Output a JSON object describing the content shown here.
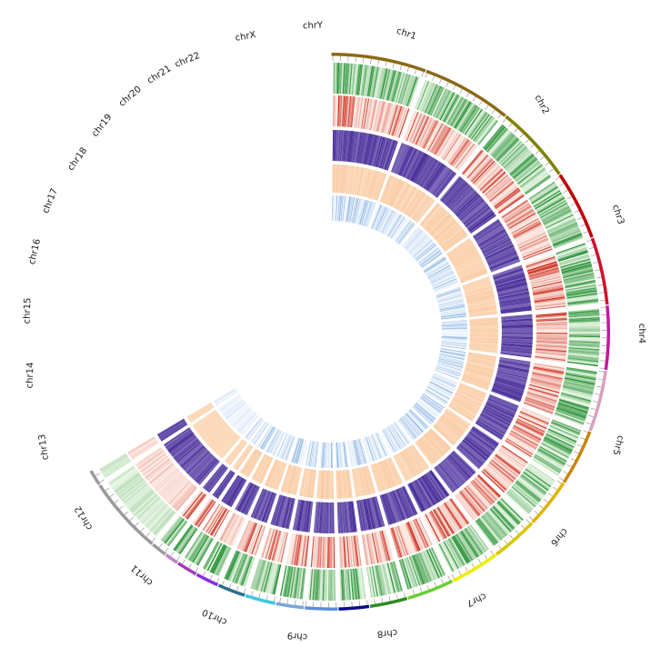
{
  "chart_data": {
    "type": "circos",
    "title": "",
    "chromosomes": [
      {
        "name": "chr1",
        "color": "#8B6914"
      },
      {
        "name": "chr2",
        "color": "#8B6914"
      },
      {
        "name": "chr3",
        "color": "#808000"
      },
      {
        "name": "chr4",
        "color": "#C00000"
      },
      {
        "name": "chr5",
        "color": "#D0102A"
      },
      {
        "name": "chr6",
        "color": "#C21A9A"
      },
      {
        "name": "chr7",
        "color": "#D8A0C0"
      },
      {
        "name": "chr8",
        "color": "#C8860A"
      },
      {
        "name": "chr9",
        "color": "#E4B000"
      },
      {
        "name": "chr10",
        "color": "#D6C800"
      },
      {
        "name": "chr11",
        "color": "#EEEE00"
      },
      {
        "name": "chr12",
        "color": "#6ACD32"
      },
      {
        "name": "chr13",
        "color": "#2E8B22"
      },
      {
        "name": "chr14",
        "color": "#0A0A8C"
      },
      {
        "name": "chr15",
        "color": "#5B8FD6"
      },
      {
        "name": "chr16",
        "color": "#7AA6D8"
      },
      {
        "name": "chr17",
        "color": "#3CC8DC"
      },
      {
        "name": "chr18",
        "color": "#2A6E8C"
      },
      {
        "name": "chr19",
        "color": "#8A2BE2"
      },
      {
        "name": "chr20",
        "color": "#A03CB4"
      },
      {
        "name": "chr21",
        "color": "#C080C8"
      },
      {
        "name": "chr22",
        "color": "#9A9A9A"
      },
      {
        "name": "chrX",
        "color": "#9A9A9A"
      },
      {
        "name": "chrY",
        "color": "#9A9A9A"
      }
    ],
    "tracks": [
      {
        "kind": "heatmap",
        "color_scale": [
          "#E8F6E4",
          "#1E8B2E"
        ]
      },
      {
        "kind": "heatmap",
        "color_scale": [
          "#FCE9E2",
          "#C81E0E"
        ]
      },
      {
        "kind": "heatmap",
        "color_scale": [
          "#9E8FCF",
          "#3A1F8F"
        ]
      },
      {
        "kind": "heatmap",
        "color_scale": [
          "#FCDCBE",
          "#F6B888"
        ]
      },
      {
        "kind": "heatmap",
        "color_scale": [
          "#F4F8FE",
          "#6FA3DA"
        ]
      }
    ]
  }
}
